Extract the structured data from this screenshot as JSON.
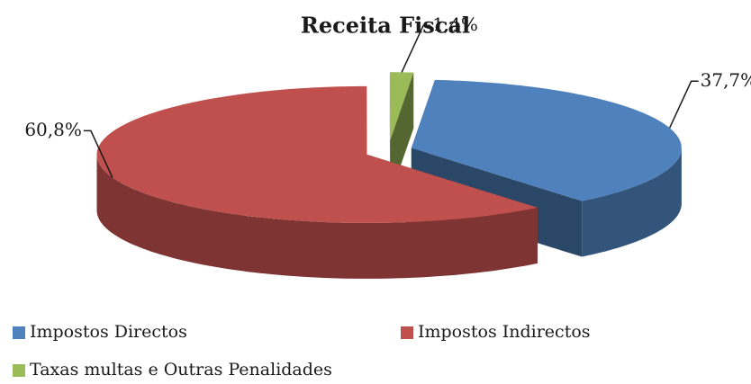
{
  "chart_data": {
    "type": "pie3d",
    "title": "Receita Fiscal",
    "categories": [
      "Impostos Directos",
      "Impostos Indirectos",
      "Taxas multas e Outras Penalidades"
    ],
    "values": [
      37.7,
      60.8,
      1.4
    ],
    "value_labels": [
      "37,7%",
      "60,8%",
      "1,4%"
    ],
    "colors": [
      "#4f81bd",
      "#c0504d",
      "#9bbb59"
    ]
  }
}
